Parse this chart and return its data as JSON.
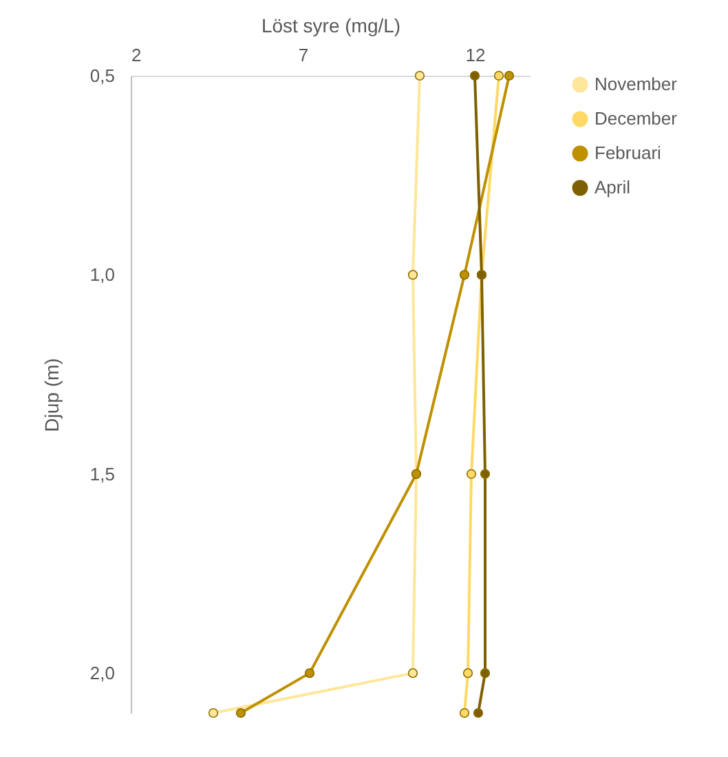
{
  "chart_data": {
    "type": "line",
    "orientation": "horizontal",
    "xlabel": "Löst syre (mg/L)",
    "ylabel": "Djup (m)",
    "x": [
      0.5,
      1.0,
      1.5,
      2.0,
      2.1
    ],
    "series": [
      {
        "name": "November",
        "color": "#ffe699",
        "values": [
          10.4,
          10.2,
          10.3,
          10.2,
          4.4
        ]
      },
      {
        "name": "December",
        "color": "#ffd966",
        "values": [
          12.7,
          12.2,
          11.9,
          11.8,
          11.7
        ]
      },
      {
        "name": "Februari",
        "color": "#bf9000",
        "values": [
          13.0,
          11.7,
          10.3,
          7.2,
          5.2
        ]
      },
      {
        "name": "April",
        "color": "#7f6000",
        "values": [
          12.0,
          12.2,
          12.3,
          12.3,
          12.1
        ]
      }
    ],
    "xlim": [
      2,
      13.6
    ],
    "xticks": [
      2,
      7,
      12
    ],
    "ylim": [
      2.1,
      0.5
    ],
    "yticks": [
      {
        "value": 0.5,
        "label": "0,5"
      },
      {
        "value": 1.0,
        "label": "1,0"
      },
      {
        "value": 1.5,
        "label": "1,5"
      },
      {
        "value": 2.0,
        "label": "2,0"
      }
    ],
    "marker": "circle",
    "grid": false,
    "legend": "right"
  }
}
